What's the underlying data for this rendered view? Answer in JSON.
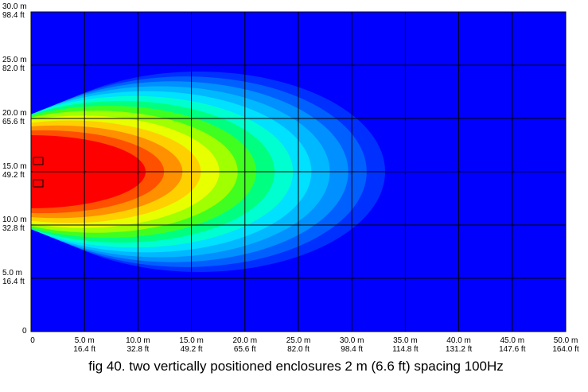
{
  "chart_data": {
    "type": "heatmap",
    "caption": "fig 40. two vertically positioned enclosures 2 m (6.6 ft) spacing 100Hz",
    "xlim": [
      0,
      50
    ],
    "ylim": [
      0,
      30
    ],
    "grid": true,
    "xticks": [
      0,
      {
        "value": 5,
        "label": "5.0 m",
        "label_ft": "16.4 ft"
      },
      {
        "value": 10,
        "label": "10.0 m",
        "label_ft": "32.8 ft"
      },
      {
        "value": 15,
        "label": "15.0 m",
        "label_ft": "49.2 ft"
      },
      {
        "value": 20,
        "label": "20.0 m",
        "label_ft": "65.6 ft"
      },
      {
        "value": 25,
        "label": "25.0 m",
        "label_ft": "82.0 ft"
      },
      {
        "value": 30,
        "label": "30.0 m",
        "label_ft": "98.4 ft"
      },
      {
        "value": 35,
        "label": "35.0 m",
        "label_ft": "114.8 ft"
      },
      {
        "value": 40,
        "label": "40.0 m",
        "label_ft": "131.2 ft"
      },
      {
        "value": 45,
        "label": "45.0 m",
        "label_ft": "147.6 ft"
      },
      {
        "value": 50,
        "label": "50.0 m",
        "label_ft": "164.0 ft"
      }
    ],
    "yticks": [
      0,
      {
        "value": 5,
        "label": "5.0 m",
        "label_ft": "16.4 ft"
      },
      {
        "value": 10,
        "label": "10.0 m",
        "label_ft": "32.8 ft"
      },
      {
        "value": 15,
        "label": "15.0 m",
        "label_ft": "49.2 ft"
      },
      {
        "value": 20,
        "label": "20.0 m",
        "label_ft": "65.6 ft"
      },
      {
        "value": 25,
        "label": "25.0 m",
        "label_ft": "82.0 ft"
      },
      {
        "value": 30,
        "label": "30.0 m",
        "label_ft": "98.4 ft"
      }
    ]
  }
}
